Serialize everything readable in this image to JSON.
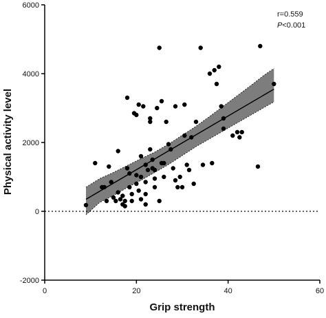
{
  "chart_data": {
    "type": "scatter",
    "xlabel": "Grip strength",
    "ylabel": "Physical activity level",
    "xlim": [
      0,
      60
    ],
    "ylim": [
      -2000,
      6000
    ],
    "x_ticks": [
      0,
      20,
      40,
      60
    ],
    "y_ticks": [
      -2000,
      0,
      2000,
      4000,
      6000
    ],
    "x_tick_labels": [
      "0",
      "20",
      "40",
      "60"
    ],
    "y_tick_labels": [
      "-2000",
      "0",
      "2000",
      "4000",
      "6000"
    ],
    "annotations": {
      "r": "r=0.559",
      "p_symbol": "P",
      "p_rest": "<0.001"
    },
    "reference_line": {
      "y": 0,
      "style": "dotted"
    },
    "regression": {
      "x_range": [
        9,
        50
      ],
      "y_start": 350,
      "y_end": 3550
    },
    "confidence_band": {
      "x": [
        9,
        12,
        15,
        18,
        21,
        24,
        27,
        30,
        33,
        36,
        39,
        42,
        45,
        48,
        50
      ],
      "upper": [
        700,
        950,
        1130,
        1330,
        1530,
        1720,
        1950,
        2210,
        2470,
        2760,
        3060,
        3360,
        3660,
        3970,
        4150
      ],
      "lower": [
        -100,
        260,
        460,
        690,
        900,
        1130,
        1360,
        1620,
        1880,
        2110,
        2340,
        2570,
        2800,
        3030,
        3180
      ]
    },
    "colors": {
      "points": "#000000",
      "band": "#7d7d7d",
      "line": "#000000",
      "background": "#ffffff"
    },
    "points": [
      [
        9,
        180
      ],
      [
        11,
        1400
      ],
      [
        12.5,
        700
      ],
      [
        13,
        700
      ],
      [
        13.5,
        300
      ],
      [
        14,
        1300
      ],
      [
        14.5,
        850
      ],
      [
        15,
        400
      ],
      [
        15.5,
        300
      ],
      [
        16,
        1750
      ],
      [
        16,
        550
      ],
      [
        16.5,
        350
      ],
      [
        17,
        450
      ],
      [
        17,
        200
      ],
      [
        17.5,
        300
      ],
      [
        17.5,
        150
      ],
      [
        18,
        1250
      ],
      [
        18,
        3300
      ],
      [
        18.5,
        1100
      ],
      [
        18.5,
        700
      ],
      [
        19,
        500
      ],
      [
        19,
        300
      ],
      [
        19.5,
        2850
      ],
      [
        20,
        2800
      ],
      [
        20,
        1050
      ],
      [
        20,
        800
      ],
      [
        20.5,
        3100
      ],
      [
        20.5,
        600
      ],
      [
        21,
        1600
      ],
      [
        21,
        1000
      ],
      [
        21,
        350
      ],
      [
        21.5,
        3050
      ],
      [
        22,
        1350
      ],
      [
        22,
        850
      ],
      [
        22,
        500
      ],
      [
        22,
        200
      ],
      [
        22.5,
        1200
      ],
      [
        23,
        1800
      ],
      [
        23,
        2700
      ],
      [
        23,
        2600
      ],
      [
        23.5,
        1500
      ],
      [
        23.5,
        1250
      ],
      [
        24,
        700
      ],
      [
        24,
        950
      ],
      [
        24,
        1200
      ],
      [
        24.5,
        3000
      ],
      [
        25,
        4750
      ],
      [
        25,
        300
      ],
      [
        25.5,
        3200
      ],
      [
        25.5,
        1400
      ],
      [
        26,
        1000
      ],
      [
        26,
        1400
      ],
      [
        26.5,
        2600
      ],
      [
        27,
        1950
      ],
      [
        27.5,
        1800
      ],
      [
        28,
        1250
      ],
      [
        28.5,
        3050
      ],
      [
        28.5,
        900
      ],
      [
        29,
        700
      ],
      [
        29.5,
        1000
      ],
      [
        30,
        700
      ],
      [
        30.5,
        2200
      ],
      [
        30.5,
        3100
      ],
      [
        31,
        1350
      ],
      [
        31.5,
        1200
      ],
      [
        32,
        2150
      ],
      [
        32.5,
        800
      ],
      [
        33,
        2600
      ],
      [
        34,
        4750
      ],
      [
        34.5,
        1350
      ],
      [
        36,
        4000
      ],
      [
        36.5,
        1400
      ],
      [
        37,
        4100
      ],
      [
        37.5,
        3700
      ],
      [
        38,
        4200
      ],
      [
        38.5,
        3050
      ],
      [
        39,
        2400
      ],
      [
        39,
        2700
      ],
      [
        41,
        2200
      ],
      [
        42,
        2300
      ],
      [
        42.5,
        2150
      ],
      [
        43,
        2300
      ],
      [
        46.5,
        1300
      ],
      [
        47,
        4800
      ],
      [
        50,
        3700
      ]
    ]
  }
}
